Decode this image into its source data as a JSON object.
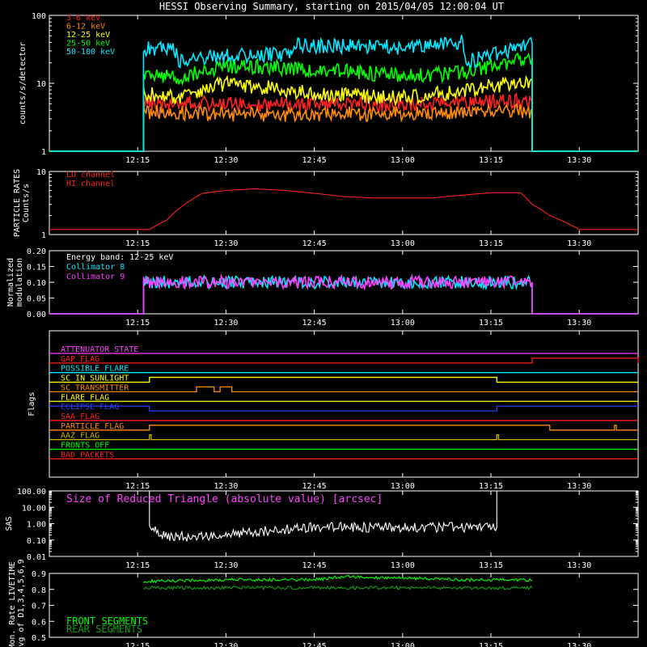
{
  "title": "HESSI Observing Summary, starting on 2015/04/05 12:00:04 UT",
  "time_ticks": [
    "12:15",
    "12:30",
    "12:45",
    "13:00",
    "13:15",
    "13:30"
  ],
  "chart_data": [
    {
      "type": "line",
      "name": "counts",
      "ylabel": "counts/s/detector",
      "yscale": "log",
      "ylim": [
        1,
        100
      ],
      "ytick_labels": [
        "1",
        "10",
        "100"
      ],
      "xlim": [
        "12:00",
        "13:40"
      ],
      "series": [
        {
          "name": "3-6 keV",
          "color": "#ff2020",
          "x": [
            "12:00",
            "12:16",
            "12:16",
            "12:30",
            "12:45",
            "13:00",
            "13:15",
            "13:22",
            "13:22",
            "13:40"
          ],
          "values": [
            1,
            1,
            5.2,
            5.0,
            4.8,
            4.9,
            5.5,
            5.4,
            1,
            1
          ]
        },
        {
          "name": "6-12 keV",
          "color": "#ff8c00",
          "x": [
            "12:00",
            "12:16",
            "12:16",
            "12:30",
            "12:45",
            "13:00",
            "13:15",
            "13:22",
            "13:22",
            "13:40"
          ],
          "values": [
            1,
            1,
            3.8,
            3.5,
            3.5,
            3.6,
            3.9,
            3.8,
            1,
            1
          ]
        },
        {
          "name": "12-25 keV",
          "color": "#ffff00",
          "x": [
            "12:00",
            "12:16",
            "12:16",
            "12:22",
            "12:30",
            "12:45",
            "13:00",
            "13:10",
            "13:15",
            "13:22",
            "13:22",
            "13:40"
          ],
          "values": [
            1,
            1,
            7,
            6.3,
            10,
            7,
            6.2,
            7.5,
            9,
            11,
            1,
            1
          ]
        },
        {
          "name": "25-50 keV",
          "color": "#00ff00",
          "x": [
            "12:00",
            "12:16",
            "12:16",
            "12:22",
            "12:30",
            "12:45",
            "13:00",
            "13:10",
            "13:15",
            "13:22",
            "13:22",
            "13:40"
          ],
          "values": [
            1,
            1,
            13,
            12,
            18,
            16,
            13,
            14,
            18,
            24,
            1,
            1
          ]
        },
        {
          "name": "50-100 keV",
          "color": "#00e8ff",
          "x": [
            "12:00",
            "12:16",
            "12:16",
            "12:21",
            "12:22",
            "12:30",
            "12:41",
            "12:42",
            "13:00",
            "13:10",
            "13:11",
            "13:15",
            "13:22",
            "13:22",
            "13:40"
          ],
          "values": [
            1,
            1,
            32,
            33,
            21,
            25,
            27,
            36,
            34,
            40,
            21,
            25,
            38,
            1,
            1
          ]
        }
      ]
    },
    {
      "type": "line",
      "name": "particle-rates",
      "ylabel": "PARTICLE RATES Counts/s",
      "yscale": "log",
      "ylim": [
        1,
        10
      ],
      "ytick_labels": [
        "1",
        "10"
      ],
      "series": [
        {
          "name": "LO channel",
          "color": "#ff2020",
          "x": [
            "12:00",
            "12:17",
            "12:20",
            "12:23",
            "12:26",
            "12:30",
            "12:35",
            "12:40",
            "12:45",
            "12:50",
            "12:55",
            "13:00",
            "13:05",
            "13:10",
            "13:15",
            "13:20",
            "13:22",
            "13:25",
            "13:28",
            "13:30",
            "13:40"
          ],
          "values": [
            1.2,
            1.2,
            1.7,
            3,
            4.5,
            5,
            5.3,
            5,
            4.5,
            4,
            3.8,
            3.8,
            3.8,
            4.2,
            4.6,
            4.6,
            3,
            2,
            1.5,
            1.2,
            1.2
          ]
        },
        {
          "name": "HI channel",
          "color": "#ff2020",
          "x": [],
          "values": []
        }
      ]
    },
    {
      "type": "line",
      "name": "modulation",
      "ylabel": "Normalized modulation",
      "ylim": [
        0,
        0.2
      ],
      "ytick_labels": [
        "0.00",
        "0.05",
        "0.10",
        "0.15",
        "0.20"
      ],
      "annotation": "Energy band: 12-25 keV",
      "series": [
        {
          "name": "Collimator 8",
          "color": "#00e8ff",
          "x": [
            "12:00",
            "12:16",
            "12:16",
            "13:22",
            "13:22",
            "13:40"
          ],
          "values": [
            0,
            0,
            0.1,
            0.1,
            0,
            0
          ]
        },
        {
          "name": "Collimator 9",
          "color": "#ff40ff",
          "x": [
            "12:00",
            "12:16",
            "12:16",
            "13:22",
            "13:22",
            "13:40"
          ],
          "values": [
            0,
            0,
            0.1,
            0.1,
            0,
            0
          ]
        }
      ]
    },
    {
      "type": "line",
      "name": "flags",
      "ylabel": "Flags",
      "series": [
        {
          "name": "ATTENUATOR STATE",
          "color": "#ff40ff",
          "segments": []
        },
        {
          "name": "GAP FLAG",
          "color": "#ff2020",
          "segments": [
            [
              "13:22",
              "13:40"
            ]
          ]
        },
        {
          "name": "POSSIBLE FLARE",
          "color": "#00e8ff",
          "segments": []
        },
        {
          "name": "SC IN SUNLIGHT",
          "color": "#ffff00",
          "segments": [
            [
              "12:17",
              "13:16"
            ]
          ]
        },
        {
          "name": "SC TRANSMITTER",
          "color": "#ff8c00",
          "segments": [
            [
              "12:25",
              "12:28"
            ],
            [
              "12:29",
              "12:31"
            ]
          ]
        },
        {
          "name": "FLARE FLAG",
          "color": "#ffff00",
          "segments": []
        },
        {
          "name": "ECLIPSE FLAG",
          "color": "#2040ff",
          "segments": [
            [
              "12:00",
              "12:17"
            ],
            [
              "13:16",
              "13:40"
            ]
          ]
        },
        {
          "name": "SAA FLAG",
          "color": "#ff2020",
          "segments": []
        },
        {
          "name": "PARTICLE FLAG",
          "color": "#ff8c00",
          "segments": [
            [
              "12:17",
              "13:25"
            ],
            [
              "13:36",
              "13:36.3"
            ]
          ]
        },
        {
          "name": "AAZ FLAG",
          "color": "#c8b400",
          "segments": [
            [
              "12:17",
              "12:17.3"
            ],
            [
              "13:16",
              "13:16.3"
            ]
          ]
        },
        {
          "name": "FRONTS OFF",
          "color": "#00ff00",
          "segments": []
        },
        {
          "name": "BAD PACKETS",
          "color": "#ff2020",
          "segments": []
        }
      ]
    },
    {
      "type": "line",
      "name": "sas",
      "ylabel": "SAS",
      "yscale": "log",
      "ylim": [
        0.01,
        100
      ],
      "ytick_labels": [
        "0.01",
        "0.10",
        "1.00",
        "10.00",
        "100.00"
      ],
      "annotation": "Size of Reduced Triangle (absolute value) [arcsec]",
      "series": [
        {
          "name": "",
          "color": "#ffffff",
          "x": [
            "12:17",
            "12:17",
            "12:19",
            "12:25",
            "12:30",
            "12:35",
            "12:40",
            "12:45",
            "13:00",
            "13:15",
            "13:16",
            "13:16"
          ],
          "values": [
            100,
            0.5,
            0.18,
            0.15,
            0.2,
            0.3,
            0.45,
            0.6,
            0.6,
            0.6,
            0.6,
            100
          ]
        }
      ]
    },
    {
      "type": "line",
      "name": "livetime",
      "ylabel": "Mon. Rate LIVETIME avg of D1,3,4,5,6,9",
      "ylim": [
        0.5,
        0.9
      ],
      "ytick_labels": [
        "0.5",
        "0.6",
        "0.7",
        "0.8",
        "0.9"
      ],
      "series": [
        {
          "name": "FRONT SEGMENTS",
          "color": "#00ff00",
          "x": [
            "12:16",
            "12:30",
            "12:45",
            "12:50",
            "13:00",
            "13:10",
            "13:22"
          ],
          "values": [
            0.85,
            0.86,
            0.86,
            0.88,
            0.87,
            0.86,
            0.86
          ]
        },
        {
          "name": "REAR SEGMENTS",
          "color": "#10a010",
          "x": [
            "12:16",
            "12:30",
            "12:45",
            "13:00",
            "13:22"
          ],
          "values": [
            0.81,
            0.81,
            0.81,
            0.81,
            0.81
          ]
        }
      ]
    }
  ]
}
